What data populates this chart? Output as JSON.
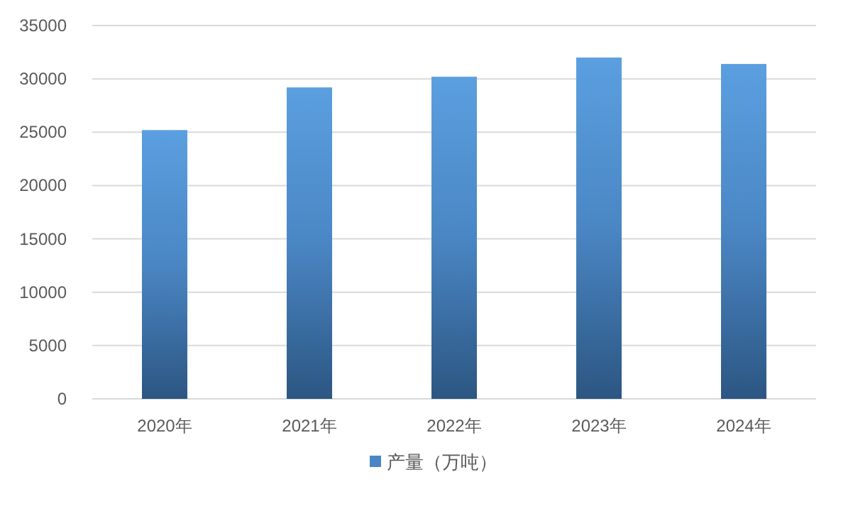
{
  "chart_data": {
    "type": "bar",
    "categories": [
      "2020年",
      "2021年",
      "2022年",
      "2023年",
      "2024年"
    ],
    "series": [
      {
        "name": "产量（万吨）",
        "color": "#4a86c4",
        "values": [
          25200,
          29200,
          30200,
          32000,
          31400
        ]
      }
    ],
    "ylim": [
      0,
      35000
    ],
    "yticks": [
      0,
      5000,
      10000,
      15000,
      20000,
      25000,
      30000,
      35000
    ],
    "grid": "y",
    "legend": "bottom"
  }
}
